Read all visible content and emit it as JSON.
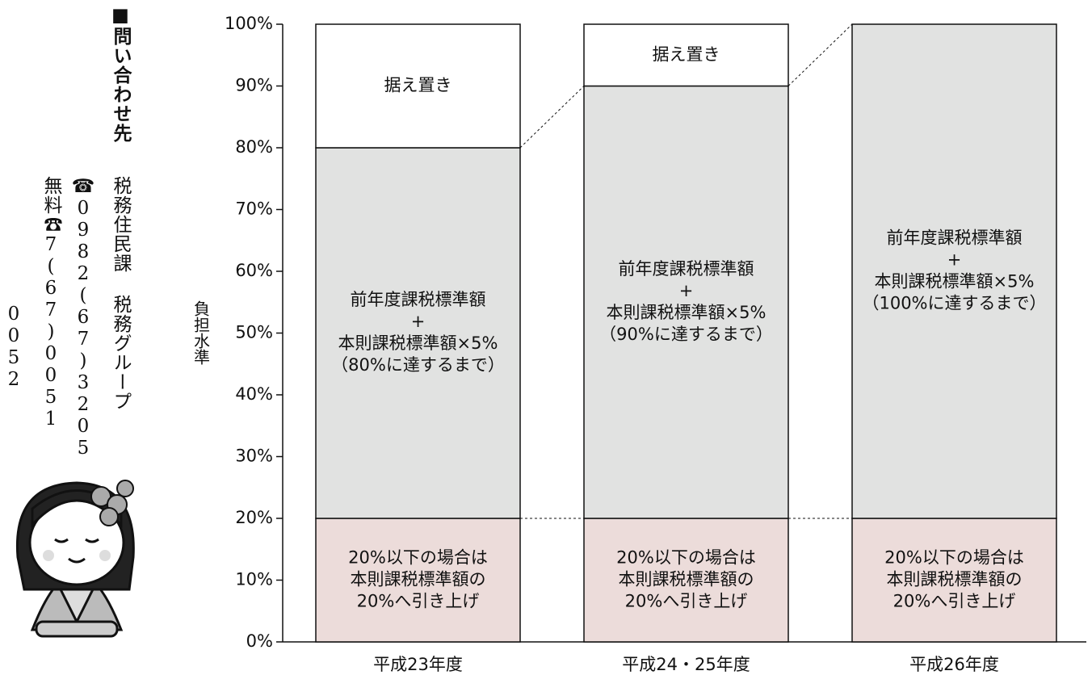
{
  "contact": {
    "title": "■問い合わせ先",
    "department": "税務住民課 税務グループ",
    "phone": "☎0982(67)3205",
    "free_dial": "無料☎7(67)0051",
    "free_dial_2": "0052"
  },
  "chart_data": {
    "type": "stacked_bar",
    "ylabel": "負担水準",
    "categories": [
      "平成23年度",
      "平成24・25年度",
      "平成26年度"
    ],
    "series": [
      {
        "color": "#ecdcda",
        "values": [
          20,
          20,
          20
        ],
        "labels": [
          [
            "20%以下の場合は",
            "本則課税標準額の",
            "20%へ引き上げ"
          ],
          [
            "20%以下の場合は",
            "本則課税標準額の",
            "20%へ引き上げ"
          ],
          [
            "20%以下の場合は",
            "本則課税標準額の",
            "20%へ引き上げ"
          ]
        ]
      },
      {
        "color": "#e1e2e1",
        "values": [
          60,
          70,
          80
        ],
        "labels": [
          [
            "前年度課税標準額",
            "+",
            "本則課税標準額×5%",
            "（80%に達するまで）"
          ],
          [
            "前年度課税標準額",
            "+",
            "本則課税標準額×5%",
            "（90%に達するまで）"
          ],
          [
            "前年度課税標準額",
            "+",
            "本則課税標準額×5%",
            "（100%に達するまで）"
          ]
        ]
      },
      {
        "color": "#ffffff",
        "values": [
          20,
          10,
          0
        ],
        "labels": [
          [
            "据え置き"
          ],
          [
            "据え置き"
          ],
          null
        ]
      }
    ],
    "ylim": [
      0,
      100
    ],
    "yticks": [
      {
        "value": 0,
        "label": "0%"
      },
      {
        "value": 10,
        "label": "10%"
      },
      {
        "value": 20,
        "label": "20%"
      },
      {
        "value": 30,
        "label": "30%"
      },
      {
        "value": 40,
        "label": "40%"
      },
      {
        "value": 50,
        "label": "50%"
      },
      {
        "value": 60,
        "label": "60%"
      },
      {
        "value": 70,
        "label": "70%"
      },
      {
        "value": 80,
        "label": "80%"
      },
      {
        "value": 90,
        "label": "90%"
      },
      {
        "value": 100,
        "label": "100%"
      }
    ]
  }
}
